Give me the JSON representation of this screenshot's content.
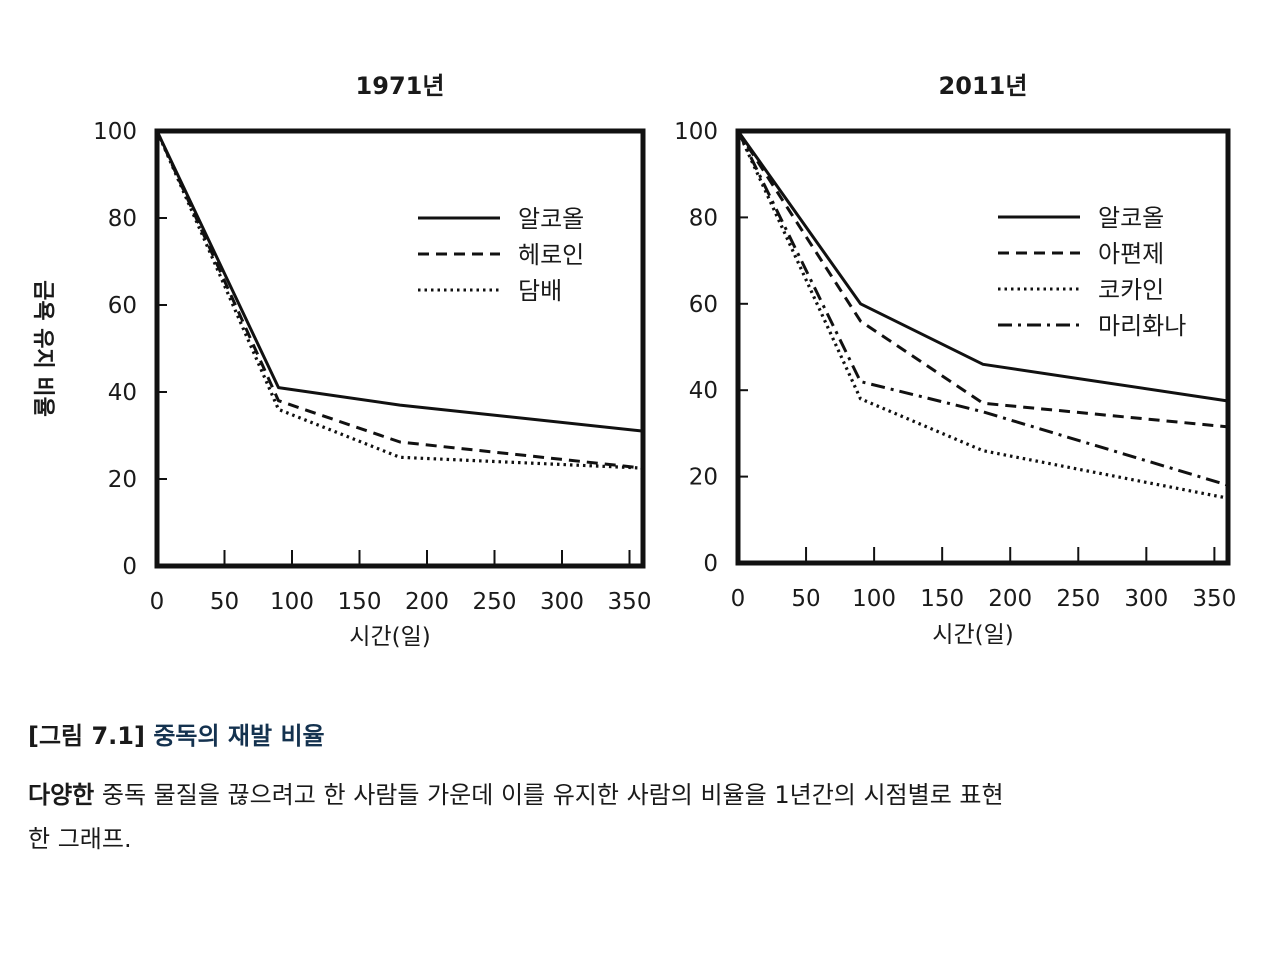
{
  "chart_data": [
    {
      "type": "line",
      "title": "1971년",
      "xlabel": "시간(일)",
      "ylabel": "금욕 유지 비율",
      "xlim": [
        0,
        360
      ],
      "ylim": [
        0,
        100
      ],
      "xticks": [
        0,
        50,
        100,
        150,
        200,
        250,
        300,
        350
      ],
      "yticks": [
        0,
        20,
        40,
        60,
        80,
        100
      ],
      "legend_position": "top-right",
      "series": [
        {
          "name": "알코올",
          "style": "solid",
          "x": [
            0,
            90,
            180,
            360
          ],
          "y": [
            100,
            41,
            37,
            31
          ]
        },
        {
          "name": "헤로인",
          "style": "dashed",
          "x": [
            0,
            90,
            180,
            360
          ],
          "y": [
            100,
            38,
            28.5,
            22.5
          ]
        },
        {
          "name": "담배",
          "style": "dotted",
          "x": [
            0,
            90,
            180,
            360
          ],
          "y": [
            100,
            36,
            25,
            22.5
          ]
        }
      ]
    },
    {
      "type": "line",
      "title": "2011년",
      "xlabel": "시간(일)",
      "xlim": [
        0,
        360
      ],
      "ylim": [
        0,
        100
      ],
      "xticks": [
        0,
        50,
        100,
        150,
        200,
        250,
        300,
        350
      ],
      "yticks": [
        0,
        20,
        40,
        60,
        80,
        100
      ],
      "legend_position": "top-right",
      "series": [
        {
          "name": "알코올",
          "style": "solid",
          "x": [
            0,
            90,
            180,
            360
          ],
          "y": [
            100,
            60,
            46,
            37.5
          ]
        },
        {
          "name": "아편제",
          "style": "dashed",
          "x": [
            0,
            90,
            180,
            360
          ],
          "y": [
            100,
            56,
            37,
            31.5
          ]
        },
        {
          "name": "코카인",
          "style": "dotted",
          "x": [
            0,
            90,
            180,
            360
          ],
          "y": [
            100,
            38,
            26,
            15
          ]
        },
        {
          "name": "마리화나",
          "style": "dashdot",
          "x": [
            0,
            90,
            180,
            360
          ],
          "y": [
            100,
            42,
            35,
            18
          ]
        }
      ]
    }
  ],
  "caption": {
    "label": "[그림 7.1]",
    "title": "중독의 재발 비율",
    "description_bold": "다양한",
    "description": "중독 물질을 끊으려고 한 사람들 가운데 이를 유지한 사람의 비율을 1년간의 시점별로 표현",
    "description_line2": "한 그래프."
  }
}
